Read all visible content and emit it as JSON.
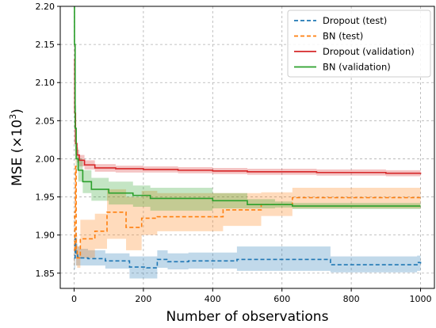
{
  "chart_data": {
    "type": "line",
    "xlabel": "Number of observations",
    "ylabel_main": "MSE (×10",
    "ylabel_exp": "3",
    "ylabel_close": ")",
    "xlim": [
      -40,
      1040
    ],
    "ylim": [
      1.83,
      2.2
    ],
    "xticks": [
      0,
      200,
      400,
      600,
      800,
      1000
    ],
    "yticks": [
      1.85,
      1.9,
      1.95,
      2.0,
      2.05,
      2.1,
      2.15,
      2.2
    ],
    "ytick_labels": [
      "1.85",
      "1.90",
      "1.95",
      "2.00",
      "2.05",
      "2.10",
      "2.15",
      "2.20"
    ],
    "grid": true,
    "legend_position": "top-right",
    "series": [
      {
        "name": "Dropout (test)",
        "color": "#1f77b4",
        "dash": "dashed",
        "x": [
          0,
          3,
          5,
          10,
          15,
          40,
          90,
          160,
          210,
          240,
          270,
          330,
          470,
          740,
          990,
          1000
        ],
        "y": [
          1.87,
          1.895,
          1.874,
          1.871,
          1.87,
          1.869,
          1.866,
          1.858,
          1.857,
          1.868,
          1.865,
          1.866,
          1.868,
          1.861,
          1.864,
          1.862
        ],
        "lower": [
          1.855,
          1.87,
          1.86,
          1.86,
          1.86,
          1.86,
          1.856,
          1.843,
          1.843,
          1.857,
          1.855,
          1.856,
          1.853,
          1.851,
          1.853,
          1.852
        ],
        "upper": [
          1.89,
          1.91,
          1.888,
          1.885,
          1.882,
          1.88,
          1.876,
          1.872,
          1.872,
          1.88,
          1.876,
          1.877,
          1.885,
          1.872,
          1.873,
          1.872
        ]
      },
      {
        "name": "BN (test)",
        "color": "#ff7f0e",
        "dash": "dashed",
        "x": [
          0,
          2,
          4,
          6,
          9,
          18,
          60,
          95,
          150,
          195,
          240,
          280,
          430,
          540,
          630,
          1000
        ],
        "y": [
          1.88,
          1.93,
          1.99,
          1.88,
          1.87,
          1.895,
          1.905,
          1.93,
          1.91,
          1.922,
          1.924,
          1.924,
          1.933,
          1.94,
          1.949,
          1.949
        ],
        "lower": [
          1.86,
          1.9,
          1.95,
          1.86,
          1.857,
          1.87,
          1.882,
          1.895,
          1.88,
          1.9,
          1.905,
          1.905,
          1.912,
          1.925,
          1.935,
          1.935
        ],
        "upper": [
          1.9,
          1.96,
          2.03,
          1.9,
          1.885,
          1.92,
          1.928,
          1.96,
          1.95,
          1.958,
          1.955,
          1.955,
          1.955,
          1.956,
          1.962,
          1.962
        ]
      },
      {
        "name": "Dropout (validation)",
        "color": "#d62728",
        "dash": "solid",
        "x": [
          0,
          2,
          4,
          8,
          15,
          30,
          60,
          120,
          200,
          300,
          400,
          500,
          600,
          700,
          800,
          900,
          1000
        ],
        "y": [
          2.13,
          2.06,
          2.02,
          2.005,
          1.998,
          1.992,
          1.988,
          1.987,
          1.986,
          1.985,
          1.984,
          1.983,
          1.983,
          1.982,
          1.982,
          1.981,
          1.98
        ],
        "lower": [
          2.1,
          2.04,
          2.005,
          1.995,
          1.99,
          1.986,
          1.983,
          1.982,
          1.982,
          1.981,
          1.98,
          1.979,
          1.979,
          1.978,
          1.978,
          1.977,
          1.976
        ],
        "upper": [
          2.16,
          2.08,
          2.03,
          2.012,
          2.005,
          1.998,
          1.993,
          1.991,
          1.99,
          1.989,
          1.988,
          1.987,
          1.987,
          1.986,
          1.986,
          1.985,
          1.984
        ]
      },
      {
        "name": "BN (validation)",
        "color": "#2ca02c",
        "dash": "solid",
        "x": [
          0,
          1,
          3,
          6,
          12,
          25,
          50,
          100,
          170,
          220,
          400,
          500,
          580,
          630,
          1000
        ],
        "y": [
          2.2,
          2.15,
          2.04,
          2.0,
          1.985,
          1.97,
          1.96,
          1.955,
          1.952,
          1.948,
          1.945,
          1.94,
          1.94,
          1.938,
          1.938
        ],
        "lower": [
          2.15,
          2.1,
          2.01,
          1.985,
          1.97,
          1.955,
          1.945,
          1.94,
          1.937,
          1.932,
          1.935,
          1.935,
          1.936,
          1.934,
          1.934
        ],
        "upper": [
          2.25,
          2.2,
          2.07,
          2.015,
          2.0,
          1.985,
          1.975,
          1.97,
          1.965,
          1.962,
          1.955,
          1.947,
          1.944,
          1.942,
          1.942
        ]
      }
    ]
  }
}
